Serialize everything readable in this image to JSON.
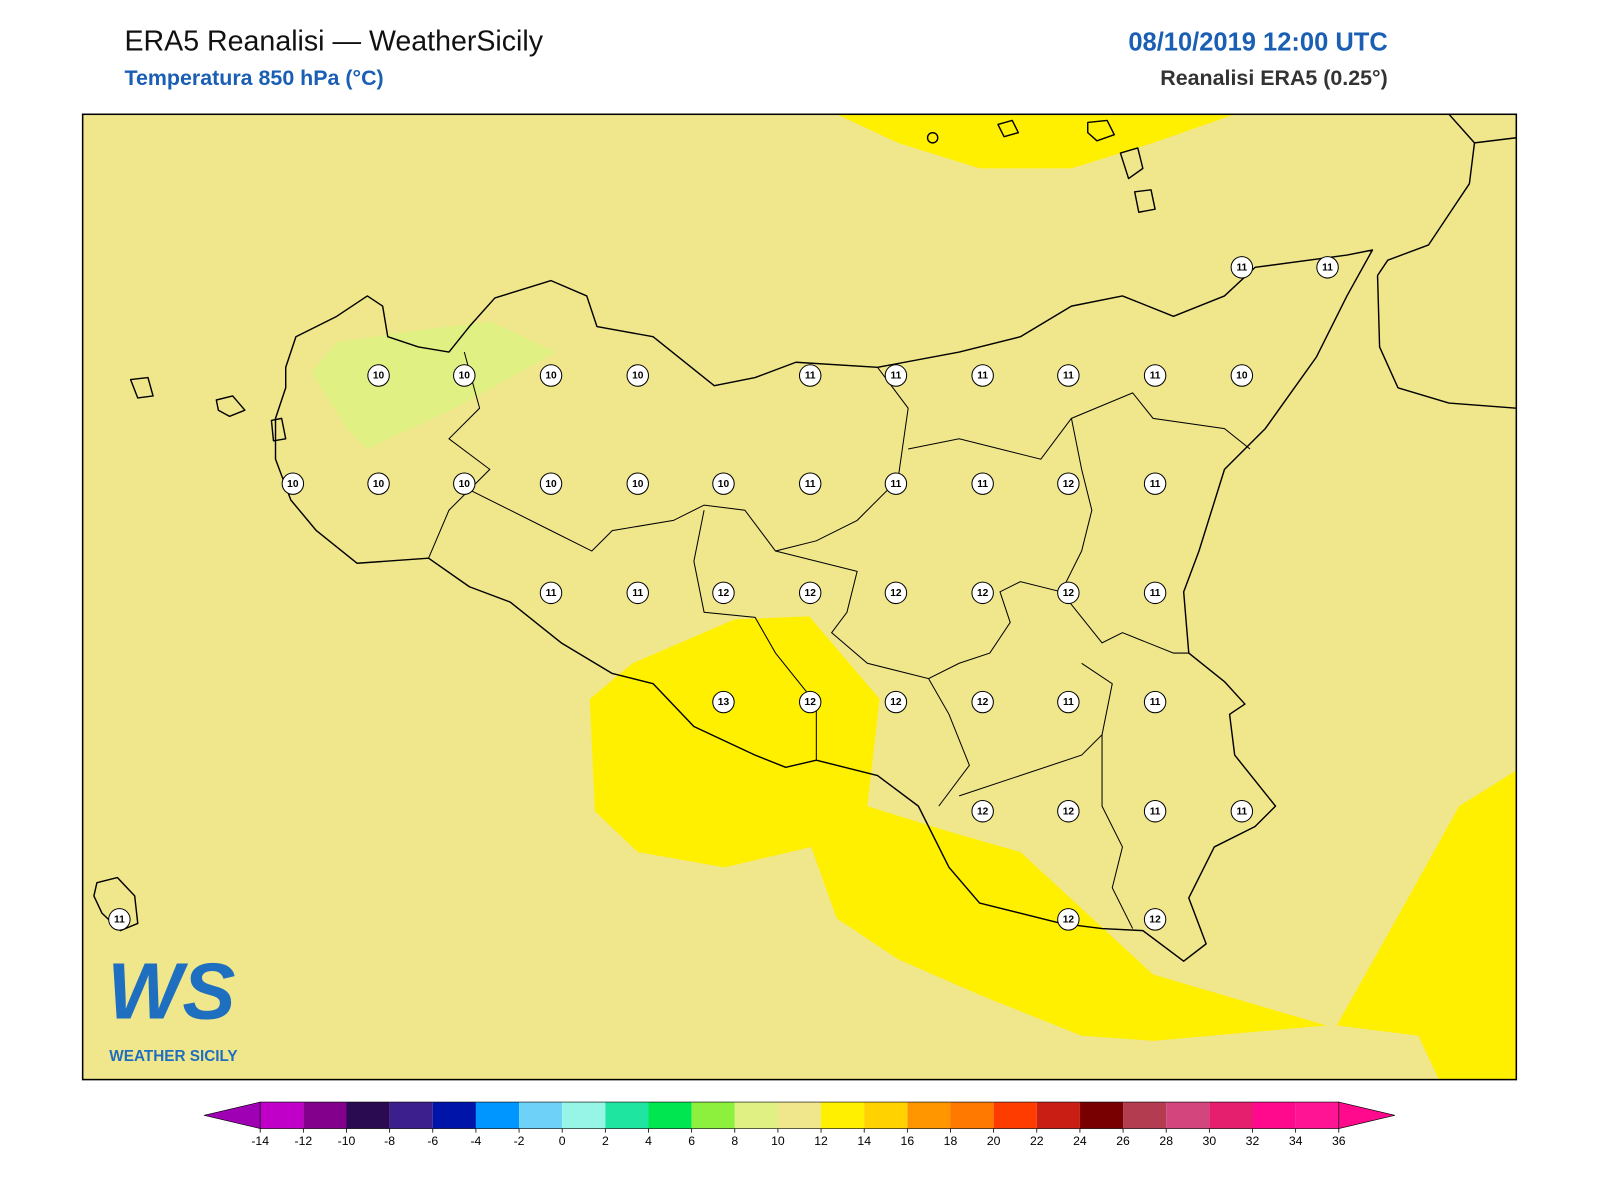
{
  "header": {
    "title": "ERA5 Reanalisi — WeatherSicily",
    "subtitle": "Temperatura 850 hPa (°C)",
    "date": "08/10/2019 12:00 UTC",
    "source": "Reanalisi ERA5 (0.25°)"
  },
  "map": {
    "background_color": "#f0e68c",
    "station_values": [
      11,
      11,
      10,
      10,
      10,
      10,
      11,
      11,
      11,
      11,
      11,
      10,
      10,
      10,
      10,
      10,
      10,
      10,
      11,
      11,
      11,
      12,
      11,
      11,
      11,
      12,
      12,
      12,
      12,
      12,
      11,
      13,
      12,
      12,
      12,
      11,
      11,
      12,
      12,
      11,
      11,
      11,
      12,
      12
    ],
    "colorbar": {
      "ticks": [
        -14,
        -12,
        -10,
        -8,
        -6,
        -4,
        -2,
        0,
        2,
        4,
        6,
        8,
        10,
        12,
        14,
        16,
        18,
        20,
        22,
        24,
        26,
        28,
        30,
        32,
        34,
        36
      ],
      "under_color": "#a000b4",
      "colors": [
        "#c000c8",
        "#82008c",
        "#2a0a50",
        "#3c1e8c",
        "#0014aa",
        "#0096ff",
        "#6ed2f8",
        "#96f5e6",
        "#1ee6a0",
        "#00e650",
        "#8cf03c",
        "#e1f082",
        "#f0e68c",
        "#fff000",
        "#ffd200",
        "#ff9600",
        "#ff7800",
        "#ff3c00",
        "#c81e14",
        "#780000",
        "#b43c50",
        "#d2467d",
        "#e61e6e",
        "#ff0a8c",
        "#ff1493"
      ],
      "over_color": "#ff0a8c"
    }
  },
  "logo": {
    "mark": "WS",
    "name": "WEATHER SICILY"
  }
}
